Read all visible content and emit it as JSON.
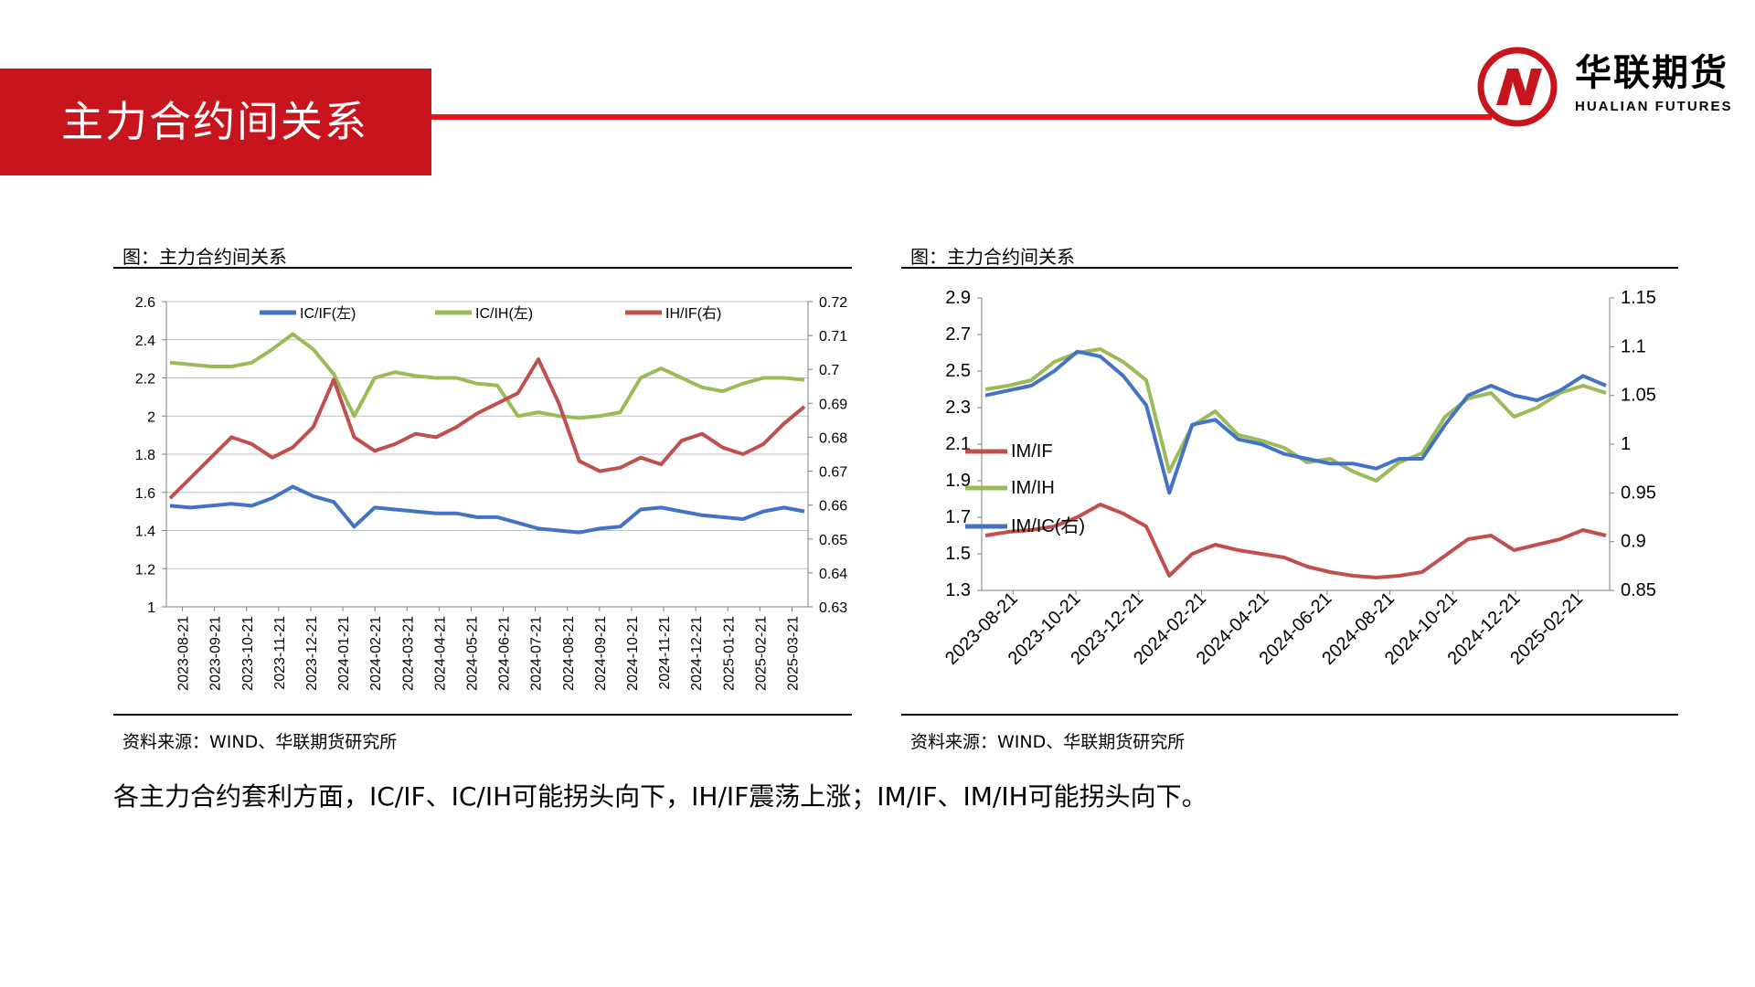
{
  "header": {
    "title": "主力合约间关系"
  },
  "logo": {
    "name": "华联期货",
    "sub": "HUALIAN FUTURES"
  },
  "left": {
    "title": "图：主力合约间关系",
    "source": "资料来源：WIND、华联期货研究所"
  },
  "right": {
    "title": "图：主力合约间关系",
    "source": "资料来源：WIND、华联期货研究所"
  },
  "summary": "各主力合约套利方面，IC/IF、IC/IH可能拐头向下，IH/IF震荡上涨；IM/IF、IM/IH可能拐头向下。",
  "chart_data": [
    {
      "type": "line",
      "x_labels": [
        "2023-08-21",
        "2023-09-21",
        "2023-10-21",
        "2023-11-21",
        "2023-12-21",
        "2024-01-21",
        "2024-02-21",
        "2024-03-21",
        "2024-04-21",
        "2024-05-21",
        "2024-06-21",
        "2024-07-21",
        "2024-08-21",
        "2024-09-21",
        "2024-10-21",
        "2024-11-21",
        "2024-12-21",
        "2025-01-21",
        "2025-02-21",
        "2025-03-21"
      ],
      "y_left": {
        "min": 1,
        "max": 2.6,
        "ticks": [
          "1",
          "1.2",
          "1.4",
          "1.6",
          "1.8",
          "2",
          "2.2",
          "2.4",
          "2.6"
        ]
      },
      "y_right": {
        "min": 0.63,
        "max": 0.72,
        "ticks": [
          "0.63",
          "0.64",
          "0.65",
          "0.66",
          "0.67",
          "0.68",
          "0.69",
          "0.7",
          "0.71",
          "0.72"
        ]
      },
      "grid": true,
      "legend": "top",
      "series": [
        {
          "name": "IC/IF(左)",
          "axis": "left",
          "color": "#4472c4",
          "values": [
            1.53,
            1.52,
            1.53,
            1.54,
            1.53,
            1.57,
            1.63,
            1.58,
            1.55,
            1.42,
            1.52,
            1.51,
            1.5,
            1.49,
            1.49,
            1.47,
            1.47,
            1.44,
            1.41,
            1.4,
            1.39,
            1.41,
            1.42,
            1.51,
            1.52,
            1.5,
            1.48,
            1.47,
            1.46,
            1.5,
            1.52,
            1.5
          ]
        },
        {
          "name": "IC/IH(左)",
          "axis": "left",
          "color": "#9bbb59",
          "values": [
            2.28,
            2.27,
            2.26,
            2.26,
            2.28,
            2.35,
            2.43,
            2.35,
            2.22,
            2.0,
            2.2,
            2.23,
            2.21,
            2.2,
            2.2,
            2.17,
            2.16,
            2.0,
            2.02,
            2.0,
            1.99,
            2.0,
            2.02,
            2.2,
            2.25,
            2.2,
            2.15,
            2.13,
            2.17,
            2.2,
            2.2,
            2.19
          ]
        },
        {
          "name": "IH/IF(右)",
          "axis": "right",
          "color": "#c0504d",
          "values": [
            0.662,
            0.668,
            0.674,
            0.68,
            0.678,
            0.674,
            0.677,
            0.683,
            0.697,
            0.68,
            0.676,
            0.678,
            0.681,
            0.68,
            0.683,
            0.687,
            0.69,
            0.693,
            0.703,
            0.69,
            0.673,
            0.67,
            0.671,
            0.674,
            0.672,
            0.679,
            0.681,
            0.677,
            0.675,
            0.678,
            0.684,
            0.689
          ]
        }
      ]
    },
    {
      "type": "line",
      "x_labels": [
        "2023-08-21",
        "2023-10-21",
        "2023-12-21",
        "2024-02-21",
        "2024-04-21",
        "2024-06-21",
        "2024-08-21",
        "2024-10-21",
        "2024-12-21",
        "2025-02-21"
      ],
      "y_left": {
        "min": 1.3,
        "max": 2.9,
        "ticks": [
          "1.3",
          "1.5",
          "1.7",
          "1.9",
          "2.1",
          "2.3",
          "2.5",
          "2.7",
          "2.9"
        ]
      },
      "y_right": {
        "min": 0.85,
        "max": 1.15,
        "ticks": [
          "0.85",
          "0.9",
          "0.95",
          "1",
          "1.05",
          "1.1",
          "1.15"
        ]
      },
      "grid": false,
      "legend": "center-left",
      "series": [
        {
          "name": "IM/IF",
          "axis": "left",
          "color": "#c0504d",
          "values": [
            1.6,
            1.62,
            1.63,
            1.65,
            1.7,
            1.77,
            1.72,
            1.65,
            1.38,
            1.5,
            1.55,
            1.52,
            1.5,
            1.48,
            1.43,
            1.4,
            1.38,
            1.37,
            1.38,
            1.4,
            1.49,
            1.58,
            1.6,
            1.52,
            1.55,
            1.58,
            1.63,
            1.6
          ]
        },
        {
          "name": "IM/IH",
          "axis": "left",
          "color": "#9bbb59",
          "values": [
            2.4,
            2.42,
            2.45,
            2.55,
            2.6,
            2.62,
            2.55,
            2.45,
            1.95,
            2.2,
            2.28,
            2.15,
            2.12,
            2.08,
            2.0,
            2.02,
            1.95,
            1.9,
            2.0,
            2.05,
            2.25,
            2.35,
            2.38,
            2.25,
            2.3,
            2.38,
            2.42,
            2.38
          ]
        },
        {
          "name": "IM/IC(右)",
          "axis": "right",
          "color": "#4472c4",
          "values": [
            1.05,
            1.055,
            1.06,
            1.075,
            1.095,
            1.09,
            1.07,
            1.04,
            0.95,
            1.02,
            1.025,
            1.005,
            1.0,
            0.99,
            0.985,
            0.98,
            0.98,
            0.975,
            0.985,
            0.985,
            1.02,
            1.05,
            1.06,
            1.05,
            1.045,
            1.055,
            1.07,
            1.06
          ]
        }
      ]
    }
  ]
}
